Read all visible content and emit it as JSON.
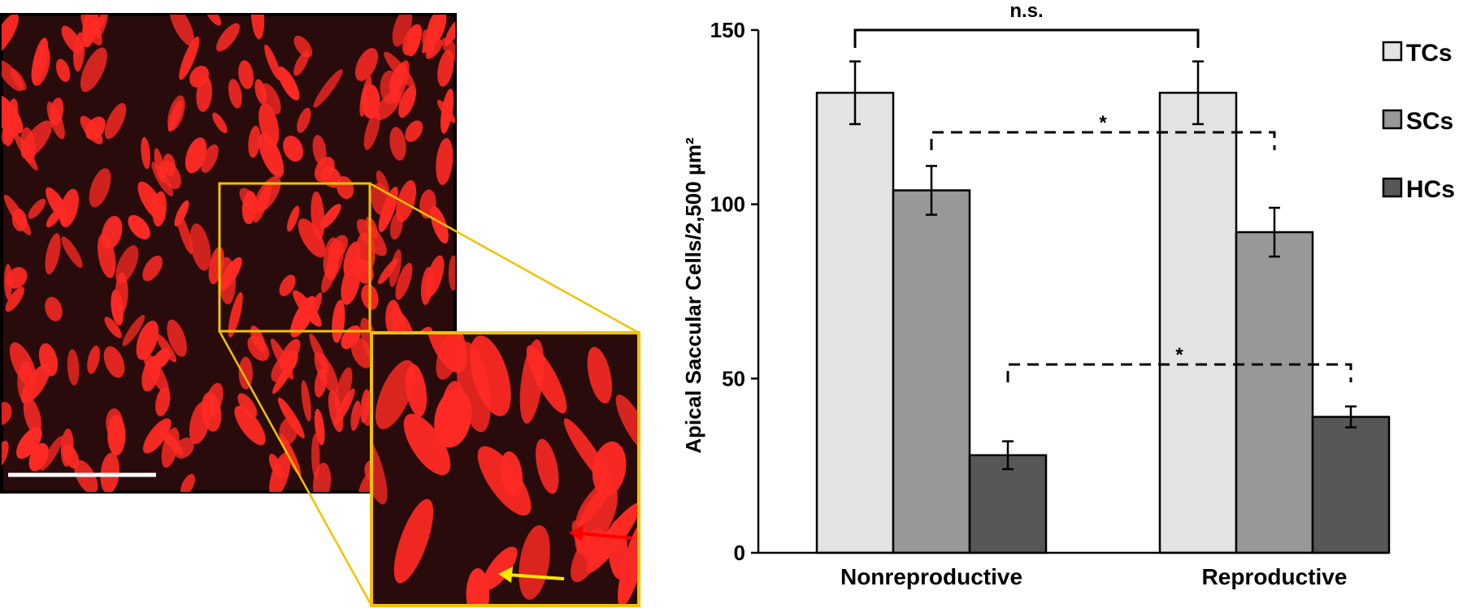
{
  "colors": {
    "micro_bg": "#2a0b0b",
    "hair_cell": "#ff2a24",
    "zoom_frame": "#f2c200",
    "arrow_red": "#ff0000",
    "arrow_yellow": "#ffe600",
    "scale_bar": "#ffffff"
  },
  "chart_data": {
    "type": "bar",
    "categories": [
      "Nonreproductive",
      "Reproductive"
    ],
    "series": [
      {
        "name": "TCs",
        "color": "#e3e3e3",
        "values": [
          132,
          132
        ],
        "errors": [
          9,
          9
        ]
      },
      {
        "name": "SCs",
        "color": "#989898",
        "values": [
          104,
          92
        ],
        "errors": [
          7,
          7
        ]
      },
      {
        "name": "HCs",
        "color": "#575757",
        "values": [
          28,
          39
        ],
        "errors": [
          4,
          3
        ]
      }
    ],
    "ylabel": "Apical Saccular Cells/2,500 µm²",
    "ylim": [
      0,
      150
    ],
    "yticks": [
      0,
      50,
      100,
      150
    ],
    "legend_position": "right",
    "grid": false,
    "annotations": [
      {
        "label": "n.s.",
        "series": "TCs",
        "style": "solid"
      },
      {
        "label": "*",
        "series": "SCs",
        "style": "dashed"
      },
      {
        "label": "*",
        "series": "HCs",
        "style": "dashed"
      }
    ]
  }
}
